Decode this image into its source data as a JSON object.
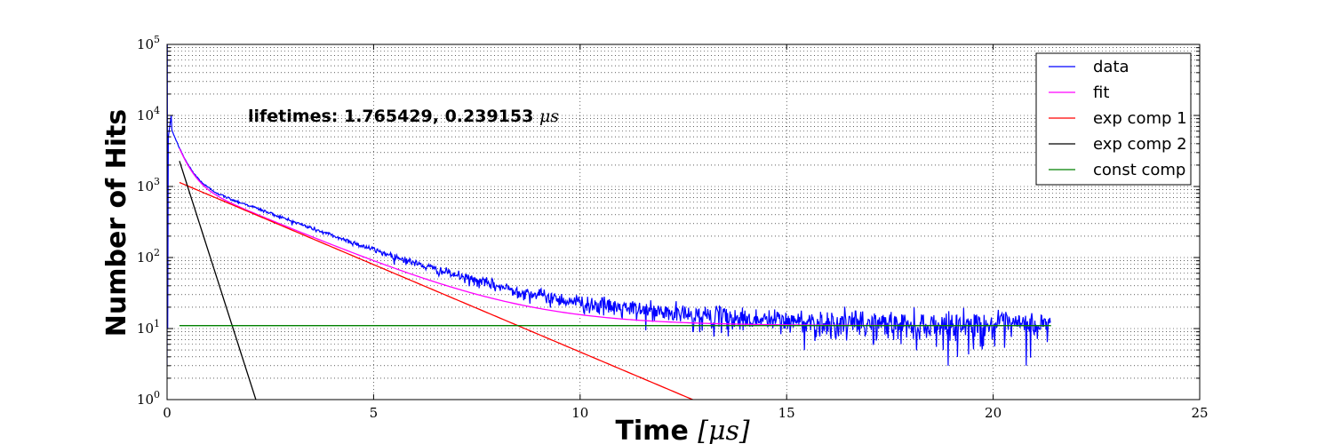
{
  "chart_data": {
    "type": "line",
    "title": "",
    "xlabel": "Time",
    "xlabel_unit": "[μs]",
    "ylabel": "Number of Hits",
    "xlim": [
      0,
      25
    ],
    "ylim": [
      1,
      100000
    ],
    "yscale": "log",
    "grid": true,
    "x_ticks": [
      0,
      5,
      10,
      15,
      20,
      25
    ],
    "y_ticks": [
      {
        "value": 1,
        "base": "10",
        "exp": "0"
      },
      {
        "value": 10,
        "base": "10",
        "exp": "1"
      },
      {
        "value": 100,
        "base": "10",
        "exp": "2"
      },
      {
        "value": 1000,
        "base": "10",
        "exp": "3"
      },
      {
        "value": 10000,
        "base": "10",
        "exp": "4"
      },
      {
        "value": 100000,
        "base": "10",
        "exp": "5"
      }
    ],
    "annotation": {
      "text": "lifetimes: 1.765429, 0.239153 ",
      "unit": "μs",
      "x": 2.0,
      "y": 8500
    },
    "legend_position": "top-right",
    "series": [
      {
        "name": "data",
        "color": "#0000ff",
        "kind": "noisy-decay",
        "x_range": [
          0.0,
          21.4
        ],
        "peak": {
          "x": 0.1,
          "y": 10000
        }
      },
      {
        "name": "fit",
        "color": "#ff00ff",
        "kind": "model",
        "A1": 1350,
        "tau1": 1.765429,
        "A2": 8000,
        "tau2": 0.239153,
        "C": 11,
        "x_range": [
          0.3,
          21.4
        ]
      },
      {
        "name": "exp comp 1",
        "color": "#ff0000",
        "kind": "exp",
        "A": 1350,
        "tau": 1.765429,
        "x_range": [
          0.3,
          12.9
        ]
      },
      {
        "name": "exp comp 2",
        "color": "#000000",
        "kind": "exp",
        "A": 8000,
        "tau": 0.239153,
        "x_range": [
          0.3,
          2.2
        ]
      },
      {
        "name": "const comp",
        "color": "#008000",
        "kind": "const",
        "C": 11,
        "x_range": [
          0.3,
          21.4
        ]
      }
    ]
  }
}
